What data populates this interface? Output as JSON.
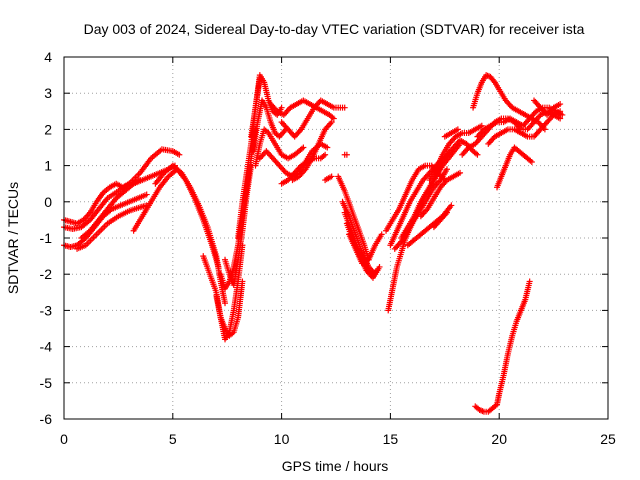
{
  "chart_data": {
    "type": "scatter",
    "title": "Day 003 of 2024, Sidereal Day-to-day VTEC variation (SDTVAR) for receiver ista",
    "xlabel": "GPS time / hours",
    "ylabel": "SDTVAR / TECUs",
    "xlim": [
      0,
      25
    ],
    "ylim": [
      -6,
      4
    ],
    "xticks": [
      "0",
      "5",
      "10",
      "15",
      "20",
      "25"
    ],
    "yticks": [
      "-6",
      "-5",
      "-4",
      "-3",
      "-2",
      "-1",
      "0",
      "1",
      "2",
      "3",
      "4"
    ],
    "grid": true,
    "marker": "+",
    "color": "#ff0000",
    "series": [
      {
        "x": [
          0.0,
          0.3,
          0.6,
          0.9,
          1.2,
          1.5,
          1.8,
          2.1,
          2.4,
          2.7,
          3.0,
          3.3,
          3.5
        ],
        "y": [
          -0.5,
          -0.55,
          -0.6,
          -0.5,
          -0.3,
          0.0,
          0.25,
          0.4,
          0.5,
          0.4,
          0.5,
          0.55,
          0.6
        ]
      },
      {
        "x": [
          0.0,
          0.4,
          0.8,
          1.2,
          1.6,
          2.0,
          2.5,
          3.0,
          3.5,
          4.0,
          4.5,
          5.0,
          5.3
        ],
        "y": [
          -0.7,
          -0.75,
          -0.7,
          -0.5,
          -0.2,
          0.1,
          0.3,
          0.5,
          0.8,
          1.2,
          1.45,
          1.4,
          1.3
        ]
      },
      {
        "x": [
          0.0,
          0.3,
          0.6,
          1.0,
          1.4,
          1.8,
          2.2,
          2.6,
          3.0,
          3.4,
          3.8
        ],
        "y": [
          -1.2,
          -1.25,
          -1.2,
          -1.0,
          -0.7,
          -0.4,
          -0.2,
          -0.1,
          0.0,
          0.1,
          0.2
        ]
      },
      {
        "x": [
          0.6,
          1.0,
          1.5,
          2.0,
          2.5,
          3.0,
          3.5,
          3.8
        ],
        "y": [
          -1.3,
          -1.2,
          -0.9,
          -0.6,
          -0.4,
          -0.25,
          -0.15,
          -0.1
        ]
      },
      {
        "x": [
          0.8,
          1.2,
          1.6,
          2.0,
          2.4,
          2.8,
          3.2,
          3.6,
          4.0,
          4.4,
          4.8,
          5.1
        ],
        "y": [
          -1.0,
          -0.8,
          -0.5,
          -0.2,
          0.1,
          0.3,
          0.5,
          0.6,
          0.7,
          0.8,
          0.9,
          1.0
        ]
      },
      {
        "x": [
          3.2,
          3.6,
          4.0,
          4.4,
          4.8,
          5.2,
          5.6,
          6.0,
          6.4,
          6.8,
          7.1
        ],
        "y": [
          -0.8,
          -0.4,
          0.0,
          0.4,
          0.7,
          0.9,
          0.6,
          0.1,
          -0.5,
          -1.2,
          -1.8
        ]
      },
      {
        "x": [
          4.2,
          4.6,
          5.0,
          5.4,
          5.8,
          6.2,
          6.6,
          7.0,
          7.2,
          7.4
        ],
        "y": [
          0.5,
          0.8,
          1.0,
          0.8,
          0.4,
          -0.1,
          -0.7,
          -1.5,
          -2.2,
          -2.8
        ]
      },
      {
        "x": [
          6.4,
          6.7,
          7.0,
          7.2,
          7.4,
          7.6,
          7.8,
          8.0,
          8.2
        ],
        "y": [
          -1.5,
          -2.0,
          -2.5,
          -3.2,
          -3.8,
          -3.6,
          -3.0,
          -2.2,
          -1.2
        ]
      },
      {
        "x": [
          7.0,
          7.2,
          7.4,
          7.6,
          7.8,
          8.0,
          8.1,
          8.2
        ],
        "y": [
          -2.6,
          -3.2,
          -3.5,
          -3.7,
          -3.6,
          -3.2,
          -2.7,
          -2.2
        ]
      },
      {
        "x": [
          7.2,
          7.4,
          7.6,
          7.8,
          8.0,
          8.2,
          8.4,
          8.6,
          8.8
        ],
        "y": [
          -2.0,
          -2.4,
          -2.2,
          -1.8,
          -1.2,
          -0.4,
          0.4,
          1.2,
          2.0
        ]
      },
      {
        "x": [
          7.4,
          7.6,
          7.8,
          8.0,
          8.2,
          8.4,
          8.6
        ],
        "y": [
          -1.6,
          -2.0,
          -2.3,
          -1.6,
          -0.8,
          0.2,
          1.0
        ]
      },
      {
        "x": [
          8.0,
          8.2,
          8.4,
          8.6,
          8.8,
          9.0
        ],
        "y": [
          -1.0,
          0.0,
          0.8,
          1.6,
          2.6,
          3.4
        ]
      },
      {
        "x": [
          8.6,
          8.8,
          9.0,
          9.2,
          9.4,
          9.6,
          9.8,
          10.0
        ],
        "y": [
          1.8,
          2.6,
          3.5,
          3.3,
          2.8,
          2.5,
          2.4,
          2.6
        ]
      },
      {
        "x": [
          8.7,
          8.9,
          9.1,
          9.3,
          9.5,
          9.7,
          9.9,
          10.2
        ],
        "y": [
          1.4,
          2.2,
          2.8,
          2.6,
          2.2,
          1.9,
          1.8,
          2.0
        ]
      },
      {
        "x": [
          8.8,
          9.0,
          9.2,
          9.4,
          9.6,
          9.8,
          10.0,
          10.3,
          10.6,
          11.0
        ],
        "y": [
          1.0,
          1.6,
          2.0,
          1.9,
          1.7,
          1.5,
          1.3,
          1.2,
          1.3,
          1.5
        ]
      },
      {
        "x": [
          9.0,
          9.3,
          9.6,
          9.9,
          10.2,
          10.5,
          10.8,
          11.1,
          11.4,
          11.8,
          12.1
        ],
        "y": [
          1.2,
          1.4,
          1.2,
          1.0,
          0.8,
          0.7,
          0.8,
          1.1,
          1.4,
          1.6,
          1.5
        ]
      },
      {
        "x": [
          9.5,
          9.8,
          10.1,
          10.4,
          10.7,
          11.0,
          11.3,
          11.6,
          11.9,
          12.2,
          12.4
        ],
        "y": [
          2.7,
          2.5,
          2.4,
          2.6,
          2.7,
          2.8,
          2.7,
          2.6,
          2.5,
          2.4,
          2.3
        ]
      },
      {
        "x": [
          10.0,
          10.3,
          10.6,
          10.9,
          11.2,
          11.5,
          11.8,
          12.1,
          12.4,
          12.7,
          12.9
        ],
        "y": [
          2.2,
          2.0,
          1.8,
          2.0,
          2.3,
          2.6,
          2.8,
          2.7,
          2.6,
          2.6,
          2.6
        ]
      },
      {
        "x": [
          10.0,
          10.3,
          10.6,
          10.9,
          11.2,
          11.5,
          11.8,
          12.0
        ],
        "y": [
          0.5,
          0.6,
          0.8,
          1.0,
          1.1,
          1.2,
          1.2,
          1.3
        ]
      },
      {
        "x": [
          10.5,
          10.8,
          11.1,
          11.4,
          11.7,
          12.0,
          12.3
        ],
        "y": [
          0.6,
          0.7,
          0.9,
          1.2,
          1.6,
          2.0,
          2.2
        ]
      },
      {
        "x": [
          12.9,
          13.0
        ],
        "y": [
          1.3,
          1.3
        ]
      },
      {
        "x": [
          12.0,
          12.3
        ],
        "y": [
          0.6,
          0.7
        ]
      },
      {
        "x": [
          12.6,
          12.9,
          13.2,
          13.5,
          13.8,
          14.0
        ],
        "y": [
          0.7,
          0.3,
          -0.2,
          -0.7,
          -1.2,
          -1.6
        ]
      },
      {
        "x": [
          12.8,
          13.1,
          13.4,
          13.7,
          14.0,
          14.3
        ],
        "y": [
          0.0,
          -0.4,
          -0.9,
          -1.4,
          -1.8,
          -2.0
        ]
      },
      {
        "x": [
          12.9,
          13.2,
          13.5,
          13.8,
          14.1,
          14.4
        ],
        "y": [
          -0.3,
          -0.8,
          -1.3,
          -1.7,
          -2.0,
          -1.9
        ]
      },
      {
        "x": [
          13.0,
          13.3,
          13.6,
          13.9,
          14.2,
          14.5
        ],
        "y": [
          -0.6,
          -1.1,
          -1.5,
          -1.9,
          -2.1,
          -1.8
        ]
      },
      {
        "x": [
          13.1,
          13.4,
          13.7,
          14.0,
          14.3,
          14.6
        ],
        "y": [
          -0.9,
          -1.3,
          -1.7,
          -1.6,
          -1.2,
          -0.9
        ]
      },
      {
        "x": [
          14.9,
          15.1,
          15.3,
          15.5,
          15.7,
          16.0,
          16.3,
          16.6,
          17.0,
          17.4,
          17.8,
          18.2
        ],
        "y": [
          -3.0,
          -2.4,
          -1.8,
          -1.4,
          -1.0,
          -0.6,
          -0.2,
          0.2,
          0.6,
          1.0,
          1.3,
          1.6
        ]
      },
      {
        "x": [
          14.8,
          15.1,
          15.4,
          15.7,
          16.0,
          16.3,
          16.6,
          16.9,
          17.2,
          17.5
        ],
        "y": [
          -0.8,
          -0.5,
          -0.2,
          0.2,
          0.6,
          0.9,
          1.0,
          1.0,
          0.8,
          0.6
        ]
      },
      {
        "x": [
          15.0,
          15.3,
          15.6,
          15.9,
          16.2,
          16.5,
          16.8,
          17.1,
          17.4,
          17.7
        ],
        "y": [
          -1.2,
          -0.8,
          -0.4,
          0.0,
          0.3,
          0.6,
          0.8,
          1.0,
          1.2,
          1.3
        ]
      },
      {
        "x": [
          15.2,
          15.5,
          15.8,
          16.1,
          16.4,
          16.7,
          17.0,
          17.3,
          17.6
        ],
        "y": [
          -1.3,
          -1.1,
          -0.8,
          -0.5,
          -0.2,
          0.1,
          0.4,
          0.6,
          0.9
        ]
      },
      {
        "x": [
          15.5,
          15.8,
          16.1,
          16.4,
          16.7,
          17.0,
          17.3,
          17.6,
          17.9,
          18.2,
          18.5,
          18.8,
          19.0
        ],
        "y": [
          -1.0,
          -0.7,
          -0.4,
          0.0,
          0.3,
          0.6,
          1.0,
          1.3,
          1.5,
          1.7,
          1.6,
          1.4,
          1.3
        ]
      },
      {
        "x": [
          15.8,
          16.2,
          16.6,
          17.0,
          17.4,
          17.8
        ],
        "y": [
          -1.2,
          -1.0,
          -0.8,
          -0.6,
          -0.4,
          -0.1
        ]
      },
      {
        "x": [
          16.4,
          16.7,
          17.0,
          17.3,
          17.6,
          17.9,
          18.2
        ],
        "y": [
          -0.4,
          -0.2,
          0.1,
          0.4,
          0.6,
          0.7,
          0.8
        ]
      },
      {
        "x": [
          16.8,
          17.1,
          17.4,
          17.7,
          18.0,
          18.3,
          18.6,
          18.9,
          19.2
        ],
        "y": [
          0.6,
          0.9,
          1.3,
          1.6,
          1.8,
          1.9,
          1.9,
          2.0,
          2.1
        ]
      },
      {
        "x": [
          17.5,
          17.8,
          18.1
        ],
        "y": [
          1.8,
          1.9,
          2.0
        ]
      },
      {
        "x": [
          17.0,
          17.3,
          17.6
        ],
        "y": [
          -0.7,
          -0.5,
          -0.3
        ]
      },
      {
        "x": [
          18.3,
          18.6,
          18.9,
          19.2,
          19.5,
          19.8,
          20.1,
          20.4,
          20.7,
          21.0,
          21.3,
          21.6,
          21.9,
          22.2,
          22.5,
          22.8
        ],
        "y": [
          1.3,
          1.5,
          1.6,
          1.8,
          2.0,
          2.2,
          2.3,
          2.3,
          2.2,
          2.0,
          2.0,
          2.2,
          2.4,
          2.5,
          2.4,
          2.3
        ]
      },
      {
        "x": [
          18.8,
          19.0,
          19.2,
          19.4,
          19.6,
          19.8,
          20.0,
          20.3,
          20.6,
          20.9,
          21.2,
          21.5,
          21.8,
          22.1
        ],
        "y": [
          2.6,
          3.0,
          3.3,
          3.5,
          3.45,
          3.3,
          3.1,
          2.8,
          2.6,
          2.5,
          2.4,
          2.3,
          2.2,
          2.0
        ]
      },
      {
        "x": [
          19.0,
          19.3,
          19.6,
          19.9,
          20.2,
          20.5,
          20.8,
          21.1,
          21.4,
          21.7,
          22.0,
          22.3,
          22.6,
          22.9
        ],
        "y": [
          1.8,
          2.0,
          2.1,
          2.2,
          2.2,
          2.3,
          2.2,
          2.1,
          2.3,
          2.5,
          2.6,
          2.6,
          2.5,
          2.4
        ]
      },
      {
        "x": [
          19.5,
          19.8,
          20.1,
          20.4,
          20.7,
          21.0,
          21.3,
          21.6,
          21.9,
          22.2,
          22.5,
          22.8
        ],
        "y": [
          1.6,
          1.8,
          1.9,
          2.0,
          2.0,
          1.9,
          1.8,
          1.8,
          2.0,
          2.2,
          2.4,
          2.5
        ]
      },
      {
        "x": [
          19.9,
          20.1,
          20.3,
          20.5,
          20.7,
          20.9,
          21.1,
          21.3,
          21.5
        ],
        "y": [
          0.4,
          0.7,
          1.0,
          1.3,
          1.5,
          1.4,
          1.3,
          1.2,
          1.1
        ]
      },
      {
        "x": [
          21.6,
          21.9,
          22.2,
          22.5,
          22.8
        ],
        "y": [
          2.8,
          2.6,
          2.4,
          2.6,
          2.7
        ]
      },
      {
        "x": [
          18.9,
          19.1,
          19.3,
          19.5,
          19.7,
          19.9,
          20.0,
          20.2,
          20.4,
          20.6,
          20.8,
          21.0,
          21.2,
          21.4
        ],
        "y": [
          -5.65,
          -5.75,
          -5.8,
          -5.8,
          -5.7,
          -5.6,
          -5.3,
          -4.8,
          -4.2,
          -3.7,
          -3.3,
          -3.0,
          -2.7,
          -2.2
        ]
      }
    ]
  }
}
